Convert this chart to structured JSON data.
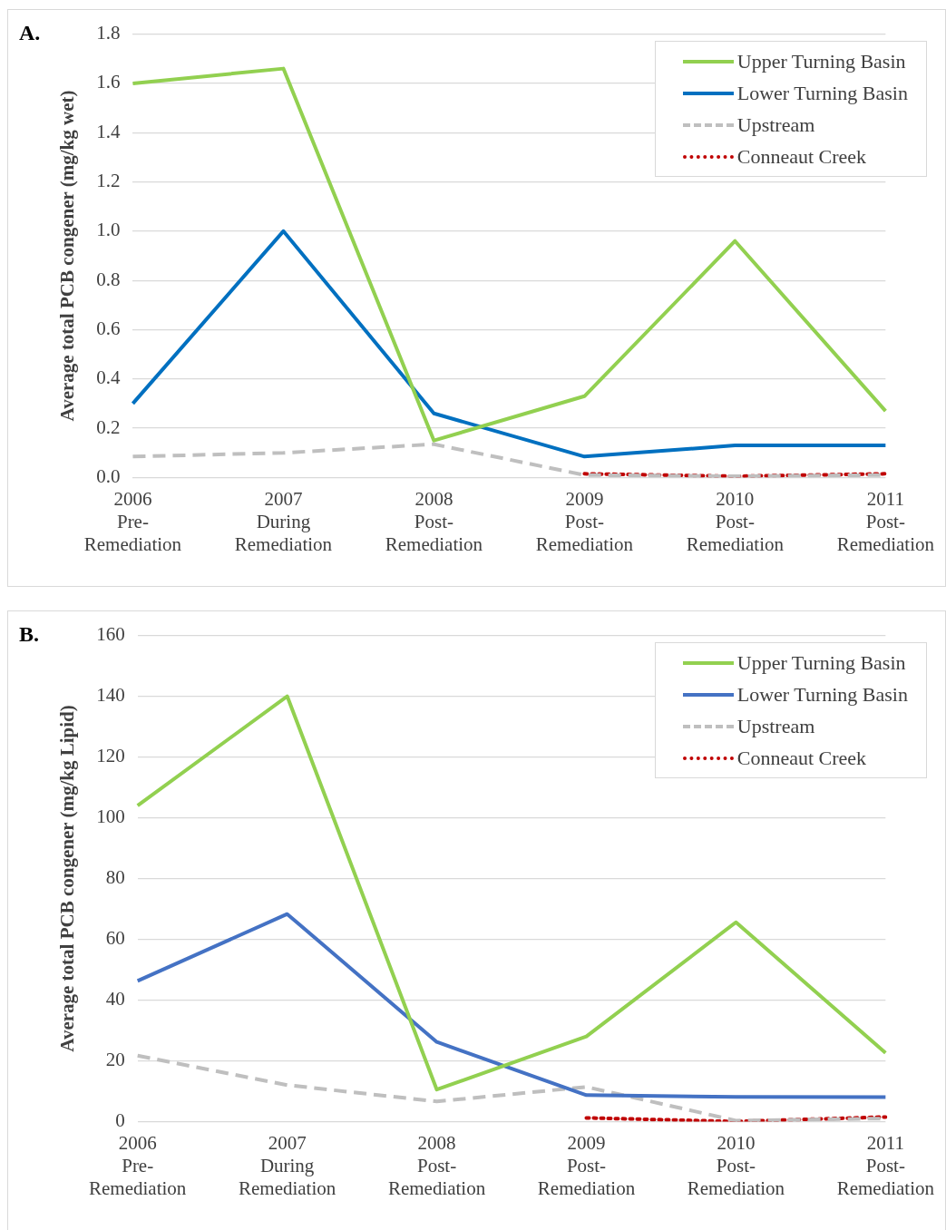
{
  "chart_data": [
    {
      "type": "line",
      "title": "A.",
      "ylabel": "Average total PCB congener (mg/kg wet)",
      "categories": [
        "2006\nPre-\nRemediation",
        "2007\nDuring\nRemediation",
        "2008\nPost-\nRemediation",
        "2009\nPost-\nRemediation",
        "2010\nPost-\nRemediation",
        "2011\nPost-\nRemediation"
      ],
      "series": [
        {
          "name": "Upper Turning Basin",
          "color": "#92d050",
          "line_style": "solid",
          "values": [
            1.6,
            1.66,
            0.15,
            0.33,
            0.96,
            0.27
          ]
        },
        {
          "name": "Lower Turning Basin",
          "color": "#0070c0",
          "line_style": "solid",
          "values": [
            0.3,
            1.0,
            0.26,
            0.085,
            0.13,
            0.13
          ]
        },
        {
          "name": "Upstream",
          "color": "#bfbfbf",
          "line_style": "dashed",
          "values": [
            0.085,
            0.1,
            0.135,
            0.01,
            0.005,
            0.01
          ]
        },
        {
          "name": "Conneaut Creek",
          "color": "#c00000",
          "line_style": "dotted",
          "values": [
            null,
            null,
            null,
            0.015,
            0.005,
            0.015
          ]
        }
      ],
      "ylim": [
        0,
        1.8
      ],
      "yticks": [
        {
          "value": 0,
          "label": "0.0"
        },
        {
          "value": 0.2,
          "label": "0.2"
        },
        {
          "value": 0.4,
          "label": "0.4"
        },
        {
          "value": 0.6,
          "label": "0.6"
        },
        {
          "value": 0.8,
          "label": "0.8"
        },
        {
          "value": 1,
          "label": "1.0"
        },
        {
          "value": 1.2,
          "label": "1.2"
        },
        {
          "value": 1.4,
          "label": "1.4"
        },
        {
          "value": 1.6,
          "label": "1.6"
        },
        {
          "value": 1.8,
          "label": "1.8"
        }
      ],
      "grid": "y",
      "legend": "top right",
      "marker": "none"
    },
    {
      "type": "line",
      "title": "B.",
      "ylabel": "Average total PCB congener (mg/kg Lipid)",
      "categories": [
        "2006\nPre-\nRemediation",
        "2007\nDuring\nRemediation",
        "2008\nPost-\nRemediation",
        "2009\nPost-\nRemediation",
        "2010\nPost-\nRemediation",
        "2011\nPost-\nRemediation"
      ],
      "series": [
        {
          "name": "Upper Turning Basin",
          "color": "#92d050",
          "line_style": "solid",
          "values": [
            104,
            140,
            10.5,
            28,
            65.6,
            22.6
          ]
        },
        {
          "name": "Lower Turning Basin",
          "color": "#4472c4",
          "line_style": "solid",
          "values": [
            46.3,
            68.3,
            26.2,
            8.7,
            8.1,
            8
          ]
        },
        {
          "name": "Upstream",
          "color": "#bfbfbf",
          "line_style": "dashed",
          "values": [
            21.7,
            12,
            6.6,
            11.4,
            0.3,
            1
          ]
        },
        {
          "name": "Conneaut Creek",
          "color": "#c00000",
          "line_style": "dotted",
          "values": [
            null,
            null,
            null,
            1.2,
            0,
            1.5
          ]
        }
      ],
      "ylim": [
        0,
        160
      ],
      "yticks": [
        0,
        20,
        40,
        60,
        80,
        100,
        120,
        140,
        160
      ],
      "grid": "y",
      "legend": "top right",
      "marker": "none"
    }
  ]
}
